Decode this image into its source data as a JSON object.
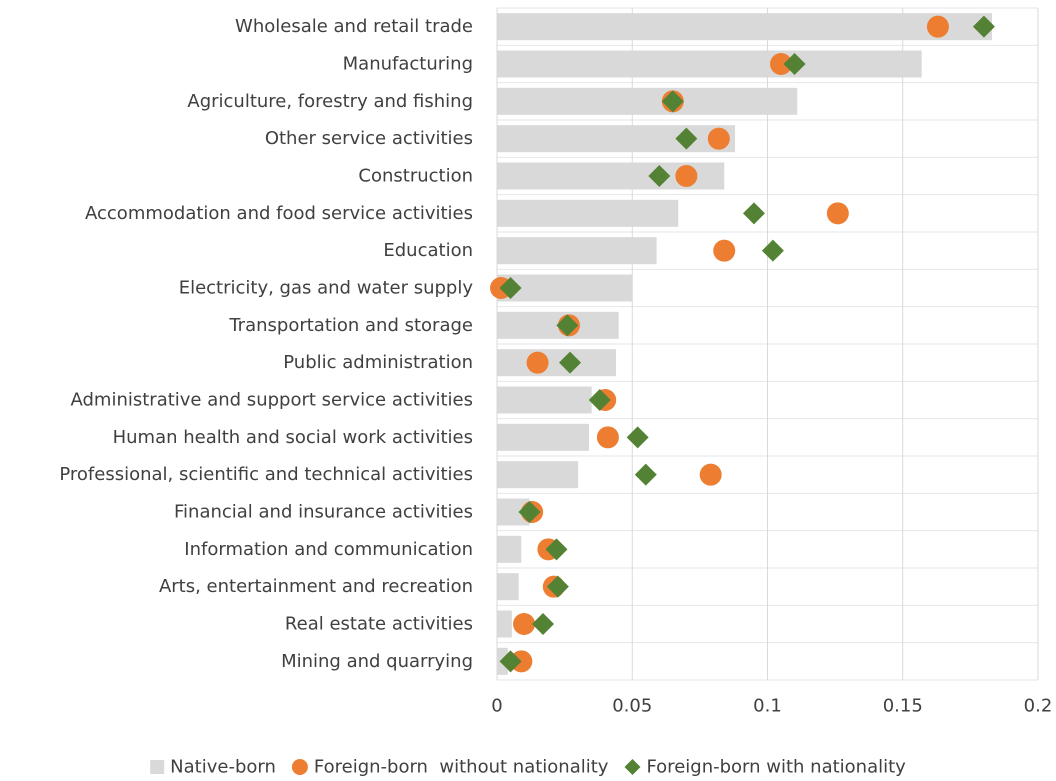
{
  "chart_data": {
    "type": "bar",
    "orientation": "horizontal",
    "categories": [
      "Wholesale and retail trade",
      "Manufacturing",
      "Agriculture, forestry and fishing",
      "Other service activities",
      "Construction",
      "Accommodation and food service activities",
      "Education",
      "Electricity, gas and water supply",
      "Transportation and storage",
      "Public administration",
      "Administrative and support service activities",
      "Human health and social work activities",
      "Professional, scientific and technical activities",
      "Financial and insurance activities",
      "Information and communication",
      "Arts, entertainment and recreation",
      "Real estate activities",
      "Mining and quarrying"
    ],
    "series": [
      {
        "name": "Native-born",
        "type": "bar",
        "marker": "square",
        "color": "#d9d9d9",
        "values": [
          0.183,
          0.157,
          0.111,
          0.088,
          0.084,
          0.067,
          0.059,
          0.05,
          0.045,
          0.044,
          0.035,
          0.034,
          0.03,
          0.012,
          0.009,
          0.008,
          0.0055,
          0.004
        ]
      },
      {
        "name": "Foreign-born  without nationality",
        "type": "scatter",
        "marker": "circle",
        "color": "#ed7d31",
        "values": [
          0.163,
          0.105,
          0.065,
          0.082,
          0.07,
          0.126,
          0.084,
          0.0015,
          0.0266,
          0.015,
          0.04,
          0.041,
          0.079,
          0.013,
          0.019,
          0.021,
          0.01,
          0.009
        ]
      },
      {
        "name": "Foreign-born with nationality",
        "type": "scatter",
        "marker": "diamond",
        "color": "#548235",
        "values": [
          0.18,
          0.11,
          0.065,
          0.07,
          0.06,
          0.095,
          0.102,
          0.005,
          0.026,
          0.027,
          0.038,
          0.052,
          0.055,
          0.012,
          0.022,
          0.0225,
          0.017,
          0.005
        ]
      }
    ],
    "xlim": [
      0,
      0.2
    ],
    "xticks": [
      0,
      0.05,
      0.1,
      0.15,
      0.2
    ],
    "grid": true,
    "legend": "bottom"
  }
}
